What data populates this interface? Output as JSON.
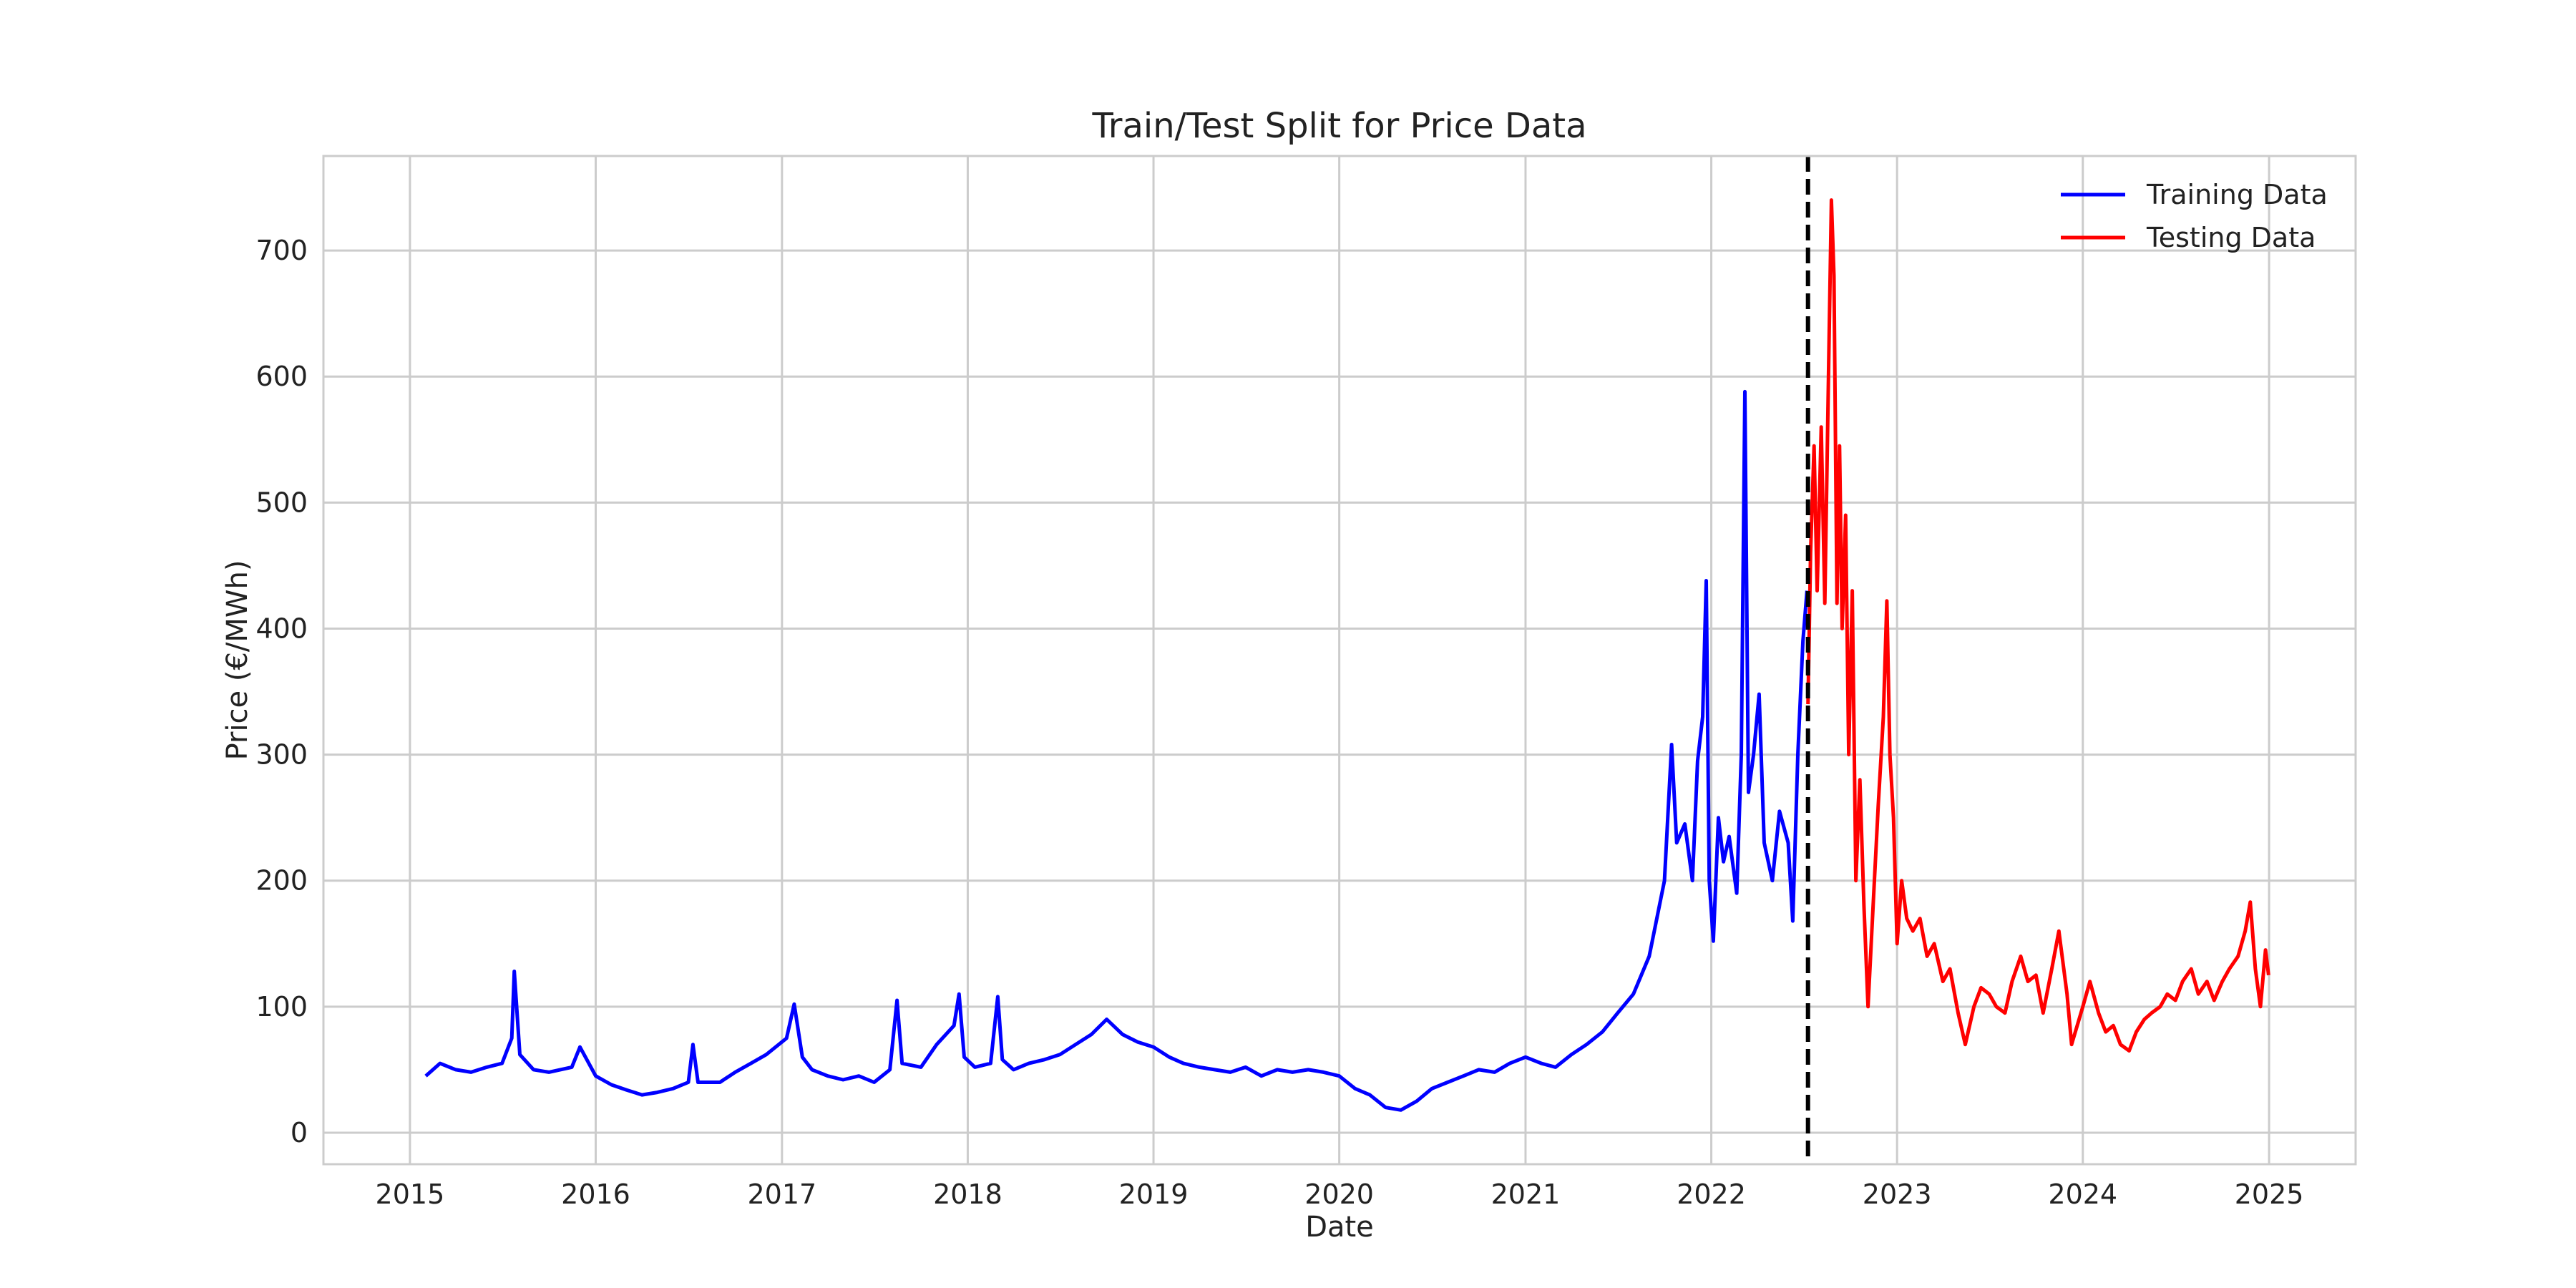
{
  "chart_data": {
    "type": "line",
    "title": "Train/Test Split for Price Data",
    "xlabel": "Date",
    "ylabel": "Price (€/MWh)",
    "xlim": [
      "2014-07-15",
      "2025-06-20"
    ],
    "ylim": [
      -25,
      775
    ],
    "xticks": [
      "2015",
      "2016",
      "2017",
      "2018",
      "2019",
      "2020",
      "2021",
      "2022",
      "2023",
      "2024",
      "2025"
    ],
    "yticks": [
      0,
      100,
      200,
      300,
      400,
      500,
      600,
      700
    ],
    "grid": true,
    "legend_position": "top-right",
    "split_date": "2022-07-10",
    "colors": {
      "train": "#0000ff",
      "test": "#ff0000",
      "split": "#000000",
      "grid": "#cccccc"
    },
    "series": [
      {
        "name": "Training Data",
        "color": "#0000ff",
        "points": [
          [
            "2015-02-01",
            45
          ],
          [
            "2015-03-01",
            55
          ],
          [
            "2015-04-01",
            50
          ],
          [
            "2015-05-01",
            48
          ],
          [
            "2015-06-01",
            52
          ],
          [
            "2015-07-01",
            55
          ],
          [
            "2015-07-20",
            75
          ],
          [
            "2015-07-25",
            128
          ],
          [
            "2015-08-05",
            62
          ],
          [
            "2015-09-01",
            50
          ],
          [
            "2015-10-01",
            48
          ],
          [
            "2015-11-15",
            52
          ],
          [
            "2015-12-01",
            68
          ],
          [
            "2016-01-01",
            45
          ],
          [
            "2016-02-01",
            38
          ],
          [
            "2016-03-01",
            34
          ],
          [
            "2016-04-01",
            30
          ],
          [
            "2016-05-01",
            32
          ],
          [
            "2016-06-01",
            35
          ],
          [
            "2016-07-01",
            40
          ],
          [
            "2016-07-10",
            70
          ],
          [
            "2016-07-20",
            40
          ],
          [
            "2016-09-01",
            40
          ],
          [
            "2016-10-01",
            48
          ],
          [
            "2016-11-01",
            55
          ],
          [
            "2016-12-01",
            62
          ],
          [
            "2017-01-10",
            75
          ],
          [
            "2017-01-25",
            102
          ],
          [
            "2017-02-10",
            60
          ],
          [
            "2017-03-01",
            50
          ],
          [
            "2017-04-01",
            45
          ],
          [
            "2017-05-01",
            42
          ],
          [
            "2017-06-01",
            45
          ],
          [
            "2017-07-01",
            40
          ],
          [
            "2017-08-01",
            50
          ],
          [
            "2017-08-15",
            105
          ],
          [
            "2017-08-25",
            55
          ],
          [
            "2017-10-01",
            52
          ],
          [
            "2017-11-01",
            70
          ],
          [
            "2017-12-05",
            85
          ],
          [
            "2017-12-15",
            110
          ],
          [
            "2017-12-25",
            60
          ],
          [
            "2018-01-15",
            52
          ],
          [
            "2018-02-15",
            55
          ],
          [
            "2018-03-01",
            108
          ],
          [
            "2018-03-10",
            58
          ],
          [
            "2018-04-01",
            50
          ],
          [
            "2018-05-01",
            55
          ],
          [
            "2018-06-01",
            58
          ],
          [
            "2018-07-01",
            62
          ],
          [
            "2018-08-01",
            70
          ],
          [
            "2018-09-01",
            78
          ],
          [
            "2018-10-01",
            90
          ],
          [
            "2018-11-01",
            78
          ],
          [
            "2018-12-01",
            72
          ],
          [
            "2019-01-01",
            68
          ],
          [
            "2019-02-01",
            60
          ],
          [
            "2019-03-01",
            55
          ],
          [
            "2019-04-01",
            52
          ],
          [
            "2019-05-01",
            50
          ],
          [
            "2019-06-01",
            48
          ],
          [
            "2019-07-01",
            52
          ],
          [
            "2019-08-01",
            45
          ],
          [
            "2019-09-01",
            50
          ],
          [
            "2019-10-01",
            48
          ],
          [
            "2019-11-01",
            50
          ],
          [
            "2019-12-01",
            48
          ],
          [
            "2020-01-01",
            45
          ],
          [
            "2020-02-01",
            35
          ],
          [
            "2020-03-01",
            30
          ],
          [
            "2020-04-01",
            20
          ],
          [
            "2020-05-01",
            18
          ],
          [
            "2020-06-01",
            25
          ],
          [
            "2020-07-01",
            35
          ],
          [
            "2020-08-01",
            40
          ],
          [
            "2020-09-01",
            45
          ],
          [
            "2020-10-01",
            50
          ],
          [
            "2020-11-01",
            48
          ],
          [
            "2020-12-01",
            55
          ],
          [
            "2021-01-01",
            60
          ],
          [
            "2021-02-01",
            55
          ],
          [
            "2021-03-01",
            52
          ],
          [
            "2021-04-01",
            62
          ],
          [
            "2021-05-01",
            70
          ],
          [
            "2021-06-01",
            80
          ],
          [
            "2021-07-01",
            95
          ],
          [
            "2021-08-01",
            110
          ],
          [
            "2021-09-01",
            140
          ],
          [
            "2021-10-01",
            200
          ],
          [
            "2021-10-15",
            308
          ],
          [
            "2021-10-25",
            230
          ],
          [
            "2021-11-10",
            245
          ],
          [
            "2021-11-25",
            200
          ],
          [
            "2021-12-05",
            295
          ],
          [
            "2021-12-15",
            330
          ],
          [
            "2021-12-22",
            438
          ],
          [
            "2021-12-28",
            200
          ],
          [
            "2022-01-05",
            152
          ],
          [
            "2022-01-15",
            250
          ],
          [
            "2022-01-25",
            215
          ],
          [
            "2022-02-05",
            235
          ],
          [
            "2022-02-20",
            190
          ],
          [
            "2022-03-01",
            300
          ],
          [
            "2022-03-08",
            588
          ],
          [
            "2022-03-15",
            270
          ],
          [
            "2022-03-25",
            300
          ],
          [
            "2022-04-05",
            348
          ],
          [
            "2022-04-15",
            230
          ],
          [
            "2022-05-01",
            200
          ],
          [
            "2022-05-15",
            255
          ],
          [
            "2022-06-01",
            230
          ],
          [
            "2022-06-10",
            168
          ],
          [
            "2022-06-20",
            300
          ],
          [
            "2022-06-30",
            390
          ],
          [
            "2022-07-08",
            430
          ]
        ]
      },
      {
        "name": "Testing Data",
        "color": "#ff0000",
        "points": [
          [
            "2022-07-10",
            340
          ],
          [
            "2022-07-15",
            460
          ],
          [
            "2022-07-22",
            545
          ],
          [
            "2022-07-28",
            430
          ],
          [
            "2022-08-05",
            560
          ],
          [
            "2022-08-12",
            420
          ],
          [
            "2022-08-20",
            620
          ],
          [
            "2022-08-25",
            740
          ],
          [
            "2022-08-30",
            680
          ],
          [
            "2022-09-05",
            420
          ],
          [
            "2022-09-10",
            545
          ],
          [
            "2022-09-15",
            400
          ],
          [
            "2022-09-22",
            490
          ],
          [
            "2022-09-28",
            300
          ],
          [
            "2022-10-05",
            430
          ],
          [
            "2022-10-12",
            200
          ],
          [
            "2022-10-20",
            280
          ],
          [
            "2022-10-28",
            180
          ],
          [
            "2022-11-05",
            100
          ],
          [
            "2022-11-15",
            180
          ],
          [
            "2022-11-25",
            260
          ],
          [
            "2022-12-05",
            330
          ],
          [
            "2022-12-12",
            422
          ],
          [
            "2022-12-18",
            300
          ],
          [
            "2022-12-25",
            250
          ],
          [
            "2023-01-01",
            150
          ],
          [
            "2023-01-10",
            200
          ],
          [
            "2023-01-20",
            170
          ],
          [
            "2023-02-01",
            160
          ],
          [
            "2023-02-15",
            170
          ],
          [
            "2023-03-01",
            140
          ],
          [
            "2023-03-15",
            150
          ],
          [
            "2023-04-01",
            120
          ],
          [
            "2023-04-15",
            130
          ],
          [
            "2023-05-01",
            95
          ],
          [
            "2023-05-15",
            70
          ],
          [
            "2023-06-01",
            100
          ],
          [
            "2023-06-15",
            115
          ],
          [
            "2023-07-01",
            110
          ],
          [
            "2023-07-15",
            100
          ],
          [
            "2023-08-01",
            95
          ],
          [
            "2023-08-15",
            120
          ],
          [
            "2023-09-01",
            140
          ],
          [
            "2023-09-15",
            120
          ],
          [
            "2023-10-01",
            125
          ],
          [
            "2023-10-15",
            95
          ],
          [
            "2023-11-01",
            130
          ],
          [
            "2023-11-15",
            160
          ],
          [
            "2023-12-01",
            110
          ],
          [
            "2023-12-10",
            70
          ],
          [
            "2024-01-01",
            100
          ],
          [
            "2024-01-15",
            120
          ],
          [
            "2024-02-01",
            95
          ],
          [
            "2024-02-15",
            80
          ],
          [
            "2024-03-01",
            85
          ],
          [
            "2024-03-15",
            70
          ],
          [
            "2024-04-01",
            65
          ],
          [
            "2024-04-15",
            80
          ],
          [
            "2024-05-01",
            90
          ],
          [
            "2024-05-15",
            95
          ],
          [
            "2024-06-01",
            100
          ],
          [
            "2024-06-15",
            110
          ],
          [
            "2024-07-01",
            105
          ],
          [
            "2024-07-15",
            120
          ],
          [
            "2024-08-01",
            130
          ],
          [
            "2024-08-15",
            110
          ],
          [
            "2024-09-01",
            120
          ],
          [
            "2024-09-15",
            105
          ],
          [
            "2024-10-01",
            120
          ],
          [
            "2024-10-15",
            130
          ],
          [
            "2024-11-01",
            140
          ],
          [
            "2024-11-15",
            160
          ],
          [
            "2024-11-25",
            183
          ],
          [
            "2024-12-05",
            130
          ],
          [
            "2024-12-15",
            100
          ],
          [
            "2024-12-25",
            145
          ],
          [
            "2024-12-31",
            125
          ]
        ]
      }
    ]
  }
}
